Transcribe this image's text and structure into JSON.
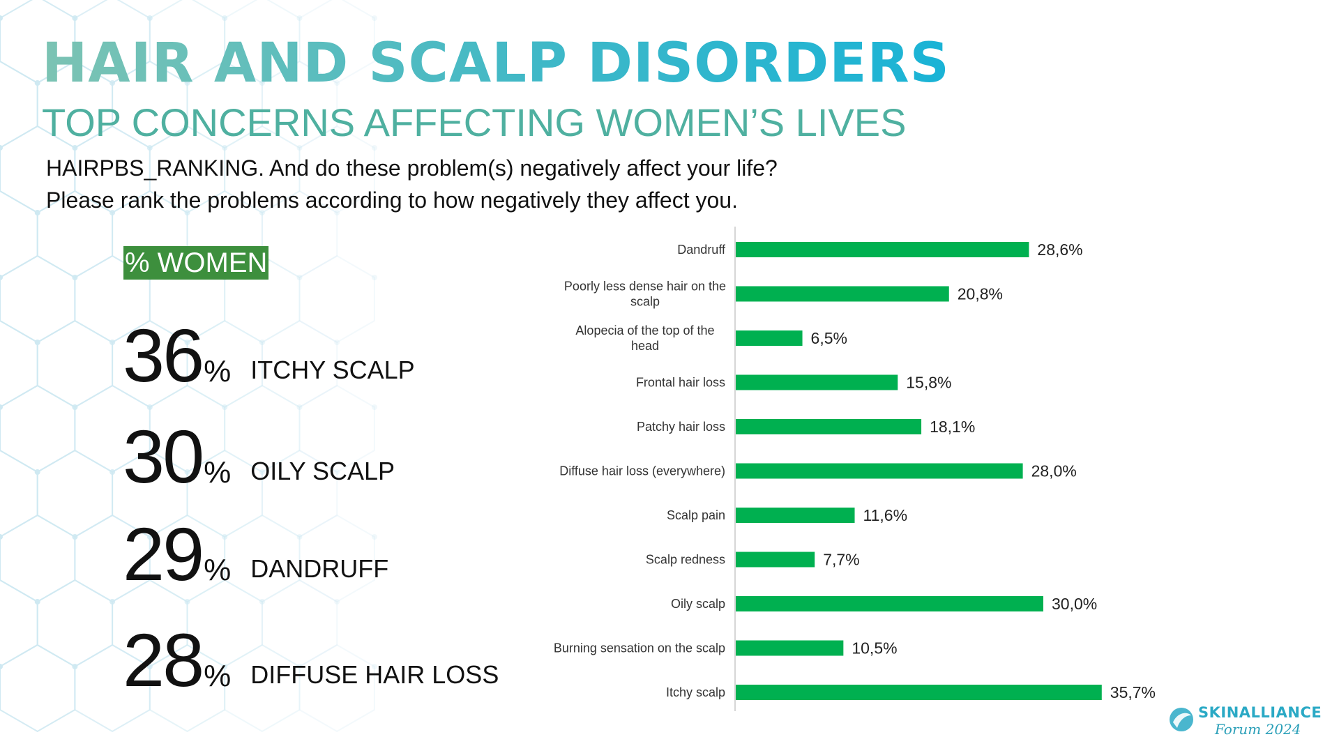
{
  "slide": {
    "title": "HAIR AND SCALP DISORDERS",
    "subtitle": "TOP CONCERNS AFFECTING WOMEN’S LIVES",
    "question_line1": "HAIRPBS_RANKING. And do these problem(s) negatively affect your life?",
    "question_line2": "Please rank the problems according to how negatively they affect you.",
    "badge": "% WOMEN",
    "stats": [
      {
        "number": "36",
        "unit": "%",
        "label": "ITCHY SCALP"
      },
      {
        "number": "30",
        "unit": "%",
        "label": "OILY SCALP"
      },
      {
        "number": "29",
        "unit": "%",
        "label": "DANDRUFF"
      },
      {
        "number": "28",
        "unit": "%",
        "label": "DIFFUSE HAIR LOSS"
      }
    ]
  },
  "logo": {
    "name": "SKINALLIANCE",
    "sub": "Forum 2024",
    "icon": "leaf-drop-icon"
  },
  "colors": {
    "bar": "#00b050",
    "badge": "#3d8f3d",
    "title_start": "#7cc3b3",
    "title_end": "#19b3d6",
    "subtitle": "#4fb0a0",
    "hex_pattern": "#cfe9f2"
  },
  "chart_data": {
    "type": "bar",
    "orientation": "horizontal",
    "categories": [
      "Dandruff",
      "Poorly less dense hair on the scalp",
      "Alopecia of the top of the head",
      "Frontal hair loss",
      "Patchy hair loss",
      "Diffuse hair loss (everywhere)",
      "Scalp pain",
      "Scalp redness",
      "Oily scalp",
      "Burning sensation on the scalp",
      "Itchy scalp"
    ],
    "category_lines": [
      [
        "Dandruff"
      ],
      [
        "Poorly less dense hair on the",
        "scalp"
      ],
      [
        "Alopecia of the top of the",
        "head"
      ],
      [
        "Frontal hair loss"
      ],
      [
        "Patchy hair loss"
      ],
      [
        "Diffuse hair loss (everywhere)"
      ],
      [
        "Scalp pain"
      ],
      [
        "Scalp redness"
      ],
      [
        "Oily scalp"
      ],
      [
        "Burning sensation on the scalp"
      ],
      [
        "Itchy scalp"
      ]
    ],
    "values": [
      28.6,
      20.8,
      6.5,
      15.8,
      18.1,
      28.0,
      11.6,
      7.7,
      30.0,
      10.5,
      35.7
    ],
    "value_labels": [
      "28,6%",
      "20,8%",
      "6,5%",
      "15,8%",
      "18,1%",
      "28,0%",
      "11,6%",
      "7,7%",
      "30,0%",
      "10,5%",
      "35,7%"
    ],
    "xlim": [
      0,
      40
    ],
    "grid": false,
    "legend": "none"
  }
}
